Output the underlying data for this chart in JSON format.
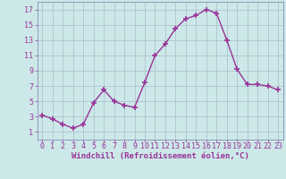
{
  "x": [
    0,
    1,
    2,
    3,
    4,
    5,
    6,
    7,
    8,
    9,
    10,
    11,
    12,
    13,
    14,
    15,
    16,
    17,
    18,
    19,
    20,
    21,
    22,
    23
  ],
  "y": [
    3.2,
    2.7,
    2.0,
    1.5,
    2.0,
    4.8,
    6.5,
    5.0,
    4.5,
    4.2,
    7.5,
    11.0,
    12.5,
    14.5,
    15.8,
    16.2,
    17.0,
    16.5,
    13.0,
    9.2,
    7.2,
    7.2,
    7.0,
    6.5
  ],
  "line_color": "#993399",
  "marker": "+",
  "marker_size": 4,
  "background_color": "#cce8e8",
  "grid_color": "#aabbcc",
  "xlabel": "Windchill (Refroidissement éolien,°C)",
  "xlabel_color": "#993399",
  "tick_color": "#993399",
  "xlim": [
    -0.5,
    23.5
  ],
  "ylim": [
    0,
    18
  ],
  "yticks": [
    1,
    3,
    5,
    7,
    9,
    11,
    13,
    15,
    17
  ],
  "xticks": [
    0,
    1,
    2,
    3,
    4,
    5,
    6,
    7,
    8,
    9,
    10,
    11,
    12,
    13,
    14,
    15,
    16,
    17,
    18,
    19,
    20,
    21,
    22,
    23
  ],
  "xlabel_fontsize": 6.5,
  "tick_fontsize": 6.0,
  "spine_color": "#7777aa",
  "line_width": 1.0,
  "marker_edge_width": 1.2
}
